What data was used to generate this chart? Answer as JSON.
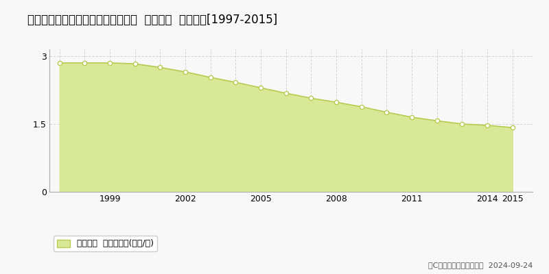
{
  "title": "北海道登別市富浦町２丁目２２番２  基準地価  地価推移[1997-2015]",
  "years": [
    1997,
    1998,
    1999,
    2000,
    2001,
    2002,
    2003,
    2004,
    2005,
    2006,
    2007,
    2008,
    2009,
    2010,
    2011,
    2012,
    2013,
    2014,
    2015
  ],
  "values": [
    2.85,
    2.85,
    2.85,
    2.83,
    2.75,
    2.65,
    2.53,
    2.42,
    2.3,
    2.18,
    2.07,
    1.98,
    1.88,
    1.76,
    1.65,
    1.57,
    1.5,
    1.47,
    1.42
  ],
  "line_color": "#b5cc50",
  "fill_color": "#d8e896",
  "marker_face": "#ffffff",
  "marker_edge": "#b5cc50",
  "grid_color": "#cccccc",
  "bg_color": "#f8f8f8",
  "plot_bg_color": "#f8f8f8",
  "yticks": [
    0,
    1.5,
    3
  ],
  "ylim": [
    0,
    3.15
  ],
  "xlim": [
    1996.6,
    2015.8
  ],
  "xtick_positions": [
    1999,
    2002,
    2005,
    2008,
    2011,
    2014,
    2015
  ],
  "legend_label": "基準地価  平均啶単価(万円/啶)",
  "copyright_text": "（C）土地価格ドットコム  2024-09-24",
  "title_fontsize": 12,
  "axis_fontsize": 9,
  "legend_fontsize": 9,
  "copyright_fontsize": 8
}
